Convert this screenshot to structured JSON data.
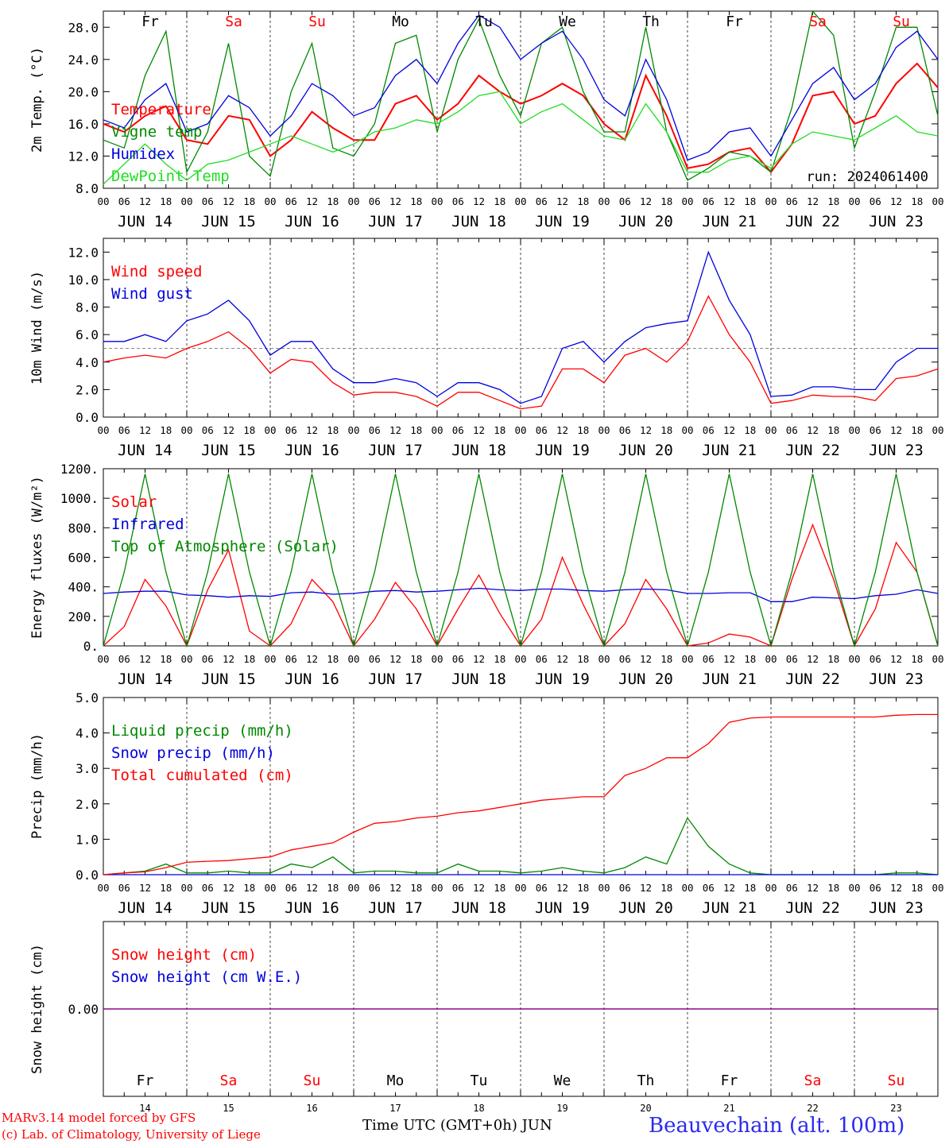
{
  "panels": [
    {
      "id": "temp",
      "ylabel": "2m Temp. (°C)",
      "ylim": [
        8,
        30
      ],
      "yticks": [
        "8.0",
        "12.0",
        "16.0",
        "20.0",
        "24.0",
        "28.0"
      ],
      "legend": [
        {
          "text": "Temperature",
          "color": "#ff0000"
        },
        {
          "text": "Vigne temp",
          "color": "#008800"
        },
        {
          "text": "Humidex",
          "color": "#0000dd"
        },
        {
          "text": "DewPoint Temp",
          "color": "#22dd22"
        }
      ],
      "weekday_labels_top": true,
      "note": "run: 2024061400"
    },
    {
      "id": "wind",
      "ylabel": "10m Wind (m/s)",
      "ylim": [
        0,
        13
      ],
      "yticks": [
        "0.0",
        "2.0",
        "4.0",
        "6.0",
        "8.0",
        "10.0",
        "12.0"
      ],
      "legend": [
        {
          "text": "Wind speed",
          "color": "#ff0000"
        },
        {
          "text": "Wind gust",
          "color": "#0000dd"
        }
      ],
      "ref_line": 5
    },
    {
      "id": "energy",
      "ylabel": "Energy fluxes (W/m²)",
      "ylim": [
        0,
        1200
      ],
      "yticks": [
        "0.",
        "200.",
        "400.",
        "600.",
        "800.",
        "1000.",
        "1200."
      ],
      "legend": [
        {
          "text": "Solar",
          "color": "#ff0000"
        },
        {
          "text": "Infrared",
          "color": "#0000dd"
        },
        {
          "text": "Top of Atmosphere (Solar)",
          "color": "#008800"
        }
      ]
    },
    {
      "id": "precip",
      "ylabel": "Precip (mm/h)",
      "ylim": [
        0,
        5
      ],
      "yticks": [
        "0.0",
        "1.0",
        "2.0",
        "3.0",
        "4.0",
        "5.0"
      ],
      "legend": [
        {
          "text": "Liquid precip (mm/h)",
          "color": "#008800"
        },
        {
          "text": "Snow precip (mm/h)",
          "color": "#0000dd"
        },
        {
          "text": "Total cumulated (cm)",
          "color": "#ff0000"
        }
      ]
    },
    {
      "id": "snow",
      "ylabel": "Snow height (cm)",
      "yticks": [
        "0.00"
      ],
      "legend": [
        {
          "text": "Snow height (cm)",
          "color": "#ff0000"
        },
        {
          "text": "Snow height (cm W.E.)",
          "color": "#0000dd"
        }
      ],
      "weekday_labels_bottom": true
    }
  ],
  "days": [
    {
      "weekday": "Fr",
      "weekend": false,
      "date_label": "JUN 14",
      "daynum": "14"
    },
    {
      "weekday": "Sa",
      "weekend": true,
      "date_label": "JUN 15",
      "daynum": "15"
    },
    {
      "weekday": "Su",
      "weekend": true,
      "date_label": "JUN 16",
      "daynum": "16"
    },
    {
      "weekday": "Mo",
      "weekend": false,
      "date_label": "JUN 17",
      "daynum": "17"
    },
    {
      "weekday": "Tu",
      "weekend": false,
      "date_label": "JUN 18",
      "daynum": "18"
    },
    {
      "weekday": "We",
      "weekend": false,
      "date_label": "JUN 19",
      "daynum": "19"
    },
    {
      "weekday": "Th",
      "weekend": false,
      "date_label": "JUN 20",
      "daynum": "20"
    },
    {
      "weekday": "Fr",
      "weekend": false,
      "date_label": "JUN 21",
      "daynum": "21"
    },
    {
      "weekday": "Sa",
      "weekend": true,
      "date_label": "JUN 22",
      "daynum": "22"
    },
    {
      "weekday": "Su",
      "weekend": true,
      "date_label": "JUN 23",
      "daynum": "23"
    }
  ],
  "hour_ticks": [
    "00",
    "06",
    "12",
    "18"
  ],
  "final_tick": "00",
  "colors": {
    "weekday": "#000000",
    "weekend": "#ff0000",
    "snow_line": "#800080",
    "grid": "#444444"
  },
  "footer": {
    "credit_1": "MARv3.14 model forced by GFS",
    "credit_2": "(c) Lab. of Climatology, University of Liege",
    "xlabel": "Time UTC (GMT+0h) JUN",
    "station": "Beauvechain (alt. 100m)"
  },
  "chart_data": {
    "type": "line",
    "x_unit": "hour since 2024-06-14 00 UTC",
    "x": [
      0,
      6,
      12,
      18,
      24,
      30,
      36,
      42,
      48,
      54,
      60,
      66,
      72,
      78,
      84,
      90,
      96,
      102,
      108,
      114,
      120,
      126,
      132,
      138,
      144,
      150,
      156,
      162,
      168,
      174,
      180,
      186,
      192,
      198,
      204,
      210,
      216,
      222,
      228,
      234,
      240
    ],
    "series": [
      {
        "panel": "temp",
        "name": "Temperature",
        "color": "#ff0000",
        "values": [
          16.0,
          15.0,
          17.0,
          18.2,
          14.0,
          13.5,
          17.0,
          16.5,
          12.0,
          14.0,
          17.5,
          15.5,
          14.0,
          14.0,
          18.5,
          19.5,
          16.5,
          18.5,
          22.0,
          20.0,
          18.5,
          19.5,
          21.0,
          19.5,
          16.0,
          14.0,
          22.0,
          17.0,
          10.5,
          11.0,
          12.5,
          13.0,
          10.0,
          13.5,
          19.5,
          20.0,
          16.0,
          17.0,
          21.0,
          23.5,
          20.5
        ]
      },
      {
        "panel": "temp",
        "name": "Vigne temp",
        "color": "#008800",
        "values": [
          14.0,
          13.0,
          22.0,
          27.5,
          10.0,
          15.0,
          26.0,
          12.0,
          9.5,
          20.0,
          26.0,
          13.0,
          12.0,
          16.0,
          26.0,
          27.0,
          15.0,
          24.0,
          29.0,
          22.0,
          17.0,
          26.0,
          28.0,
          20.0,
          15.0,
          15.0,
          28.0,
          15.0,
          9.0,
          10.5,
          12.5,
          12.0,
          10.0,
          18.0,
          30.0,
          27.0,
          13.0,
          20.0,
          28.0,
          28.0,
          17.0
        ]
      },
      {
        "panel": "temp",
        "name": "Humidex",
        "color": "#0000dd",
        "values": [
          16.5,
          15.5,
          19.0,
          21.0,
          15.0,
          16.0,
          19.5,
          18.0,
          14.5,
          17.0,
          21.0,
          19.5,
          17.0,
          18.0,
          22.0,
          24.0,
          21.0,
          26.0,
          29.5,
          28.0,
          24.0,
          26.0,
          27.5,
          24.0,
          19.0,
          17.0,
          24.0,
          19.0,
          11.5,
          12.5,
          15.0,
          15.5,
          12.0,
          16.5,
          21.0,
          23.0,
          19.0,
          21.0,
          25.5,
          27.5,
          24.0
        ]
      },
      {
        "panel": "temp",
        "name": "DewPoint Temp",
        "color": "#22dd22",
        "values": [
          8.5,
          11.0,
          13.5,
          11.0,
          9.0,
          11.0,
          11.5,
          12.5,
          13.5,
          14.5,
          13.5,
          12.5,
          13.5,
          15.0,
          15.5,
          16.5,
          16.0,
          17.5,
          19.5,
          20.0,
          16.0,
          17.5,
          18.5,
          16.5,
          14.5,
          14.0,
          18.5,
          15.0,
          10.0,
          10.0,
          11.5,
          12.0,
          10.5,
          13.5,
          15.0,
          14.5,
          14.0,
          15.5,
          17.0,
          15.0,
          14.5
        ]
      },
      {
        "panel": "wind",
        "name": "Wind speed",
        "color": "#ff0000",
        "values": [
          4.0,
          4.3,
          4.5,
          4.3,
          5.0,
          5.5,
          6.2,
          5.0,
          3.2,
          4.2,
          4.0,
          2.5,
          1.6,
          1.8,
          1.8,
          1.5,
          0.8,
          1.8,
          1.8,
          1.2,
          0.6,
          0.8,
          3.5,
          3.5,
          2.5,
          4.5,
          5.0,
          4.0,
          5.5,
          8.8,
          6.0,
          4.0,
          1.0,
          1.2,
          1.6,
          1.5,
          1.5,
          1.2,
          2.8,
          3.0,
          3.5
        ]
      },
      {
        "panel": "wind",
        "name": "Wind gust",
        "color": "#0000dd",
        "values": [
          5.5,
          5.5,
          6.0,
          5.5,
          7.0,
          7.5,
          8.5,
          7.0,
          4.5,
          5.5,
          5.5,
          3.5,
          2.5,
          2.5,
          2.8,
          2.5,
          1.5,
          2.5,
          2.5,
          2.0,
          1.0,
          1.5,
          5.0,
          5.5,
          4.0,
          5.5,
          6.5,
          6.8,
          7.0,
          12.0,
          8.5,
          6.0,
          1.5,
          1.6,
          2.2,
          2.2,
          2.0,
          2.0,
          4.0,
          5.0,
          5.0
        ]
      },
      {
        "panel": "energy",
        "name": "Solar",
        "color": "#ff0000",
        "values": [
          0,
          130,
          450,
          270,
          0,
          380,
          650,
          100,
          0,
          150,
          450,
          300,
          0,
          180,
          430,
          250,
          0,
          250,
          480,
          220,
          0,
          180,
          600,
          280,
          0,
          150,
          450,
          250,
          0,
          20,
          80,
          60,
          0,
          450,
          820,
          450,
          0,
          250,
          700,
          500,
          0
        ]
      },
      {
        "panel": "energy",
        "name": "Infrared",
        "color": "#0000dd",
        "values": [
          355,
          365,
          370,
          370,
          345,
          340,
          330,
          340,
          335,
          360,
          365,
          350,
          355,
          370,
          375,
          365,
          370,
          380,
          390,
          380,
          375,
          385,
          385,
          375,
          370,
          380,
          385,
          380,
          355,
          355,
          360,
          360,
          300,
          300,
          330,
          325,
          320,
          340,
          350,
          380,
          355
        ]
      },
      {
        "panel": "energy",
        "name": "Top of Atmosphere (Solar)",
        "color": "#008800",
        "values": [
          0,
          500,
          1165,
          500,
          0,
          500,
          1165,
          500,
          0,
          500,
          1165,
          500,
          0,
          500,
          1165,
          500,
          0,
          500,
          1165,
          500,
          0,
          500,
          1165,
          500,
          0,
          500,
          1165,
          500,
          0,
          500,
          1165,
          500,
          0,
          500,
          1165,
          500,
          0,
          500,
          1165,
          500,
          0
        ]
      },
      {
        "panel": "precip",
        "name": "Liquid precip (mm/h)",
        "color": "#008800",
        "values": [
          0,
          0.05,
          0.1,
          0.3,
          0.05,
          0.05,
          0.1,
          0.05,
          0.05,
          0.3,
          0.2,
          0.5,
          0.05,
          0.1,
          0.1,
          0.05,
          0.05,
          0.3,
          0.1,
          0.1,
          0.05,
          0.1,
          0.2,
          0.1,
          0.05,
          0.2,
          0.5,
          0.3,
          1.6,
          0.8,
          0.3,
          0.05,
          0,
          0,
          0,
          0,
          0,
          0,
          0.05,
          0.05,
          0
        ]
      },
      {
        "panel": "precip",
        "name": "Snow precip (mm/h)",
        "color": "#0000dd",
        "values": [
          0,
          0,
          0,
          0,
          0,
          0,
          0,
          0,
          0,
          0,
          0,
          0,
          0,
          0,
          0,
          0,
          0,
          0,
          0,
          0,
          0,
          0,
          0,
          0,
          0,
          0,
          0,
          0,
          0,
          0,
          0,
          0,
          0,
          0,
          0,
          0,
          0,
          0,
          0,
          0,
          0
        ]
      },
      {
        "panel": "precip",
        "name": "Total cumulated (cm)",
        "color": "#ff0000",
        "values": [
          0,
          0.05,
          0.08,
          0.2,
          0.35,
          0.38,
          0.4,
          0.45,
          0.5,
          0.7,
          0.8,
          0.9,
          1.2,
          1.45,
          1.5,
          1.6,
          1.65,
          1.75,
          1.8,
          1.9,
          2.0,
          2.1,
          2.15,
          2.2,
          2.2,
          2.8,
          3.0,
          3.3,
          3.3,
          3.7,
          4.3,
          4.42,
          4.45,
          4.45,
          4.45,
          4.45,
          4.45,
          4.45,
          4.5,
          4.52,
          4.52
        ]
      },
      {
        "panel": "snow",
        "name": "Snow height (cm)",
        "color": "#ff0000",
        "values": [
          0,
          0,
          0,
          0,
          0,
          0,
          0,
          0,
          0,
          0,
          0,
          0,
          0,
          0,
          0,
          0,
          0,
          0,
          0,
          0,
          0,
          0,
          0,
          0,
          0,
          0,
          0,
          0,
          0,
          0,
          0,
          0,
          0,
          0,
          0,
          0,
          0,
          0,
          0,
          0,
          0
        ]
      },
      {
        "panel": "snow",
        "name": "Snow height (cm W.E.)",
        "color": "#0000dd",
        "values": [
          0,
          0,
          0,
          0,
          0,
          0,
          0,
          0,
          0,
          0,
          0,
          0,
          0,
          0,
          0,
          0,
          0,
          0,
          0,
          0,
          0,
          0,
          0,
          0,
          0,
          0,
          0,
          0,
          0,
          0,
          0,
          0,
          0,
          0,
          0,
          0,
          0,
          0,
          0,
          0,
          0
        ]
      }
    ],
    "xlim": [
      0,
      240
    ],
    "grid": "dashed vertical lines at each midnight"
  }
}
